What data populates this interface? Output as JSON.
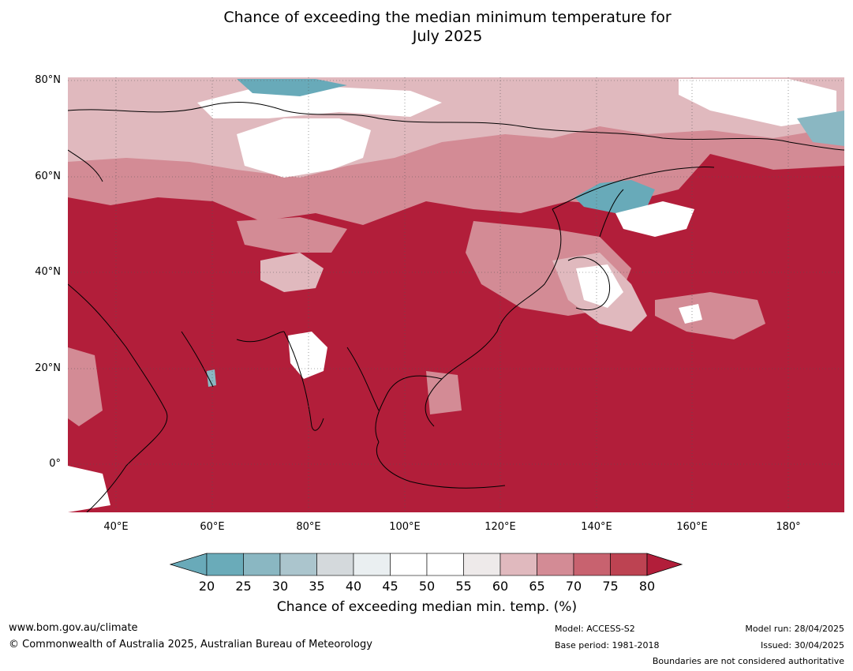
{
  "title": "Chance of exceeding the median minimum temperature for\nJuly 2025",
  "map": {
    "lat_labels": [
      "80°N",
      "60°N",
      "40°N",
      "20°N",
      "0°"
    ],
    "lon_labels": [
      "40°E",
      "60°E",
      "80°E",
      "100°E",
      "120°E",
      "140°E",
      "160°E",
      "180°"
    ],
    "colors": {
      "ocean_dominant": "#b21e3a",
      "white_band": "#ffffff",
      "cool_band": "#68aab9"
    }
  },
  "colorbar": {
    "ticks": [
      "20",
      "25",
      "30",
      "35",
      "40",
      "45",
      "50",
      "55",
      "60",
      "65",
      "70",
      "75",
      "80"
    ],
    "colors": [
      "#69aab9",
      "#6aabb9",
      "#8ab7c2",
      "#abc5cd",
      "#d4d9dc",
      "#eaeff1",
      "#ffffff",
      "#ffffff",
      "#eeeaea",
      "#e0b9be",
      "#d38b95",
      "#c8626f",
      "#bd4352",
      "#b21e3a"
    ],
    "label": "Chance of exceeding median min. temp. (%)"
  },
  "footer": {
    "website": "www.bom.gov.au/climate",
    "copyright": "© Commonwealth of Australia 2025, Australian Bureau of Meteorology",
    "model": "Model: ACCESS-S2",
    "base_period": "Base period: 1981-2018",
    "model_run": "Model run: 28/04/2025",
    "issued": "Issued: 30/04/2025",
    "disclaimer": "Boundaries are not considered authoritative"
  }
}
